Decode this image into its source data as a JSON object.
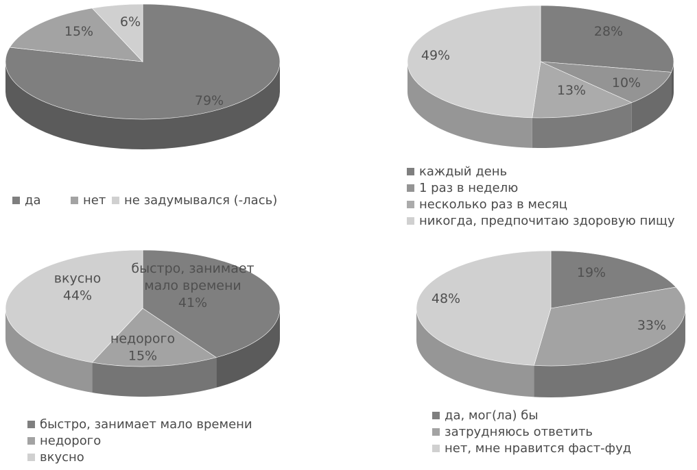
{
  "chart_data": [
    {
      "type": "pie",
      "title": "",
      "slices": [
        {
          "label": "да",
          "value": 79,
          "display": "79%"
        },
        {
          "label": "нет",
          "value": 15,
          "display": "15%"
        },
        {
          "label": "не задумывался (-лась)",
          "value": 6,
          "display": "6%"
        }
      ],
      "colors": [
        "#7f7f7f",
        "#a3a3a3",
        "#d0d0d0"
      ],
      "legend_position": "bottom"
    },
    {
      "type": "pie",
      "title": "",
      "slices": [
        {
          "label": "каждый день",
          "value": 28,
          "display": "28%"
        },
        {
          "label": "1 раз в неделю",
          "value": 10,
          "display": "10%"
        },
        {
          "label": "несколько раз в месяц",
          "value": 13,
          "display": "13%"
        },
        {
          "label": "никогда, предпочитаю здоровую пищу",
          "value": 49,
          "display": "49%"
        }
      ],
      "colors": [
        "#7f7f7f",
        "#949494",
        "#ababab",
        "#d0d0d0"
      ],
      "legend_position": "bottom"
    },
    {
      "type": "pie",
      "title": "",
      "slices": [
        {
          "label": "быстро, занимает мало времени",
          "value": 41,
          "display": [
            "быстро, занимает",
            "мало времени",
            "41%"
          ]
        },
        {
          "label": "недорого",
          "value": 15,
          "display": [
            "недорого",
            "15%"
          ]
        },
        {
          "label": "вкусно",
          "value": 44,
          "display": [
            "вкусно",
            "44%"
          ]
        }
      ],
      "colors": [
        "#7f7f7f",
        "#a3a3a3",
        "#d0d0d0"
      ],
      "legend_position": "bottom"
    },
    {
      "type": "pie",
      "title": "",
      "slices": [
        {
          "label": "да, мог(ла) бы",
          "value": 19,
          "display": "19%"
        },
        {
          "label": "затрудняюсь ответить",
          "value": 33,
          "display": "33%"
        },
        {
          "label": "нет, мне нравится фаст-фуд",
          "value": 48,
          "display": "48%"
        }
      ],
      "colors": [
        "#7f7f7f",
        "#a3a3a3",
        "#d0d0d0"
      ],
      "legend_position": "bottom"
    }
  ]
}
